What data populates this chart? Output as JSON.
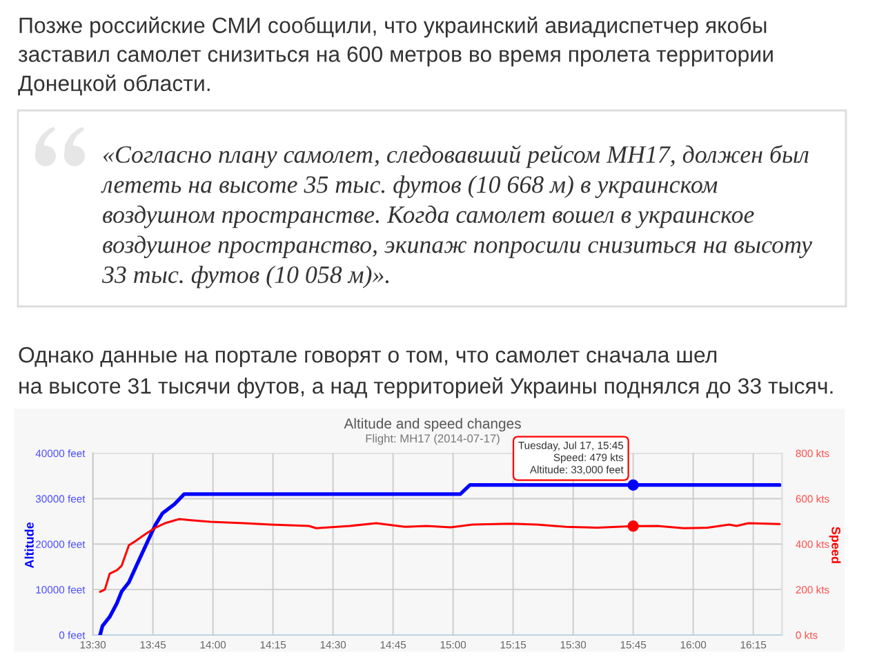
{
  "chart_data": {
    "type": "line",
    "title": "Altitude and speed changes",
    "subtitle": "Flight: MH17 (2014-07-17)",
    "ylabel": "Altitude",
    "y2label": "Speed",
    "xlim": [
      13.5,
      16.37
    ],
    "xticks": [
      {
        "value": 13.5,
        "label": "13:30"
      },
      {
        "value": 13.75,
        "label": "13:45"
      },
      {
        "value": 14,
        "label": "14:00"
      },
      {
        "value": 14.25,
        "label": "14:15"
      },
      {
        "value": 14.5,
        "label": "14:30"
      },
      {
        "value": 14.75,
        "label": "14:45"
      },
      {
        "value": 15,
        "label": "15:00"
      },
      {
        "value": 15.25,
        "label": "15:15"
      },
      {
        "value": 15.5,
        "label": "15:30"
      },
      {
        "value": 15.75,
        "label": "15:45"
      },
      {
        "value": 16,
        "label": "16:00"
      },
      {
        "value": 16.25,
        "label": "16:15"
      }
    ],
    "ylim": [
      0,
      40000
    ],
    "yticks": [
      {
        "value": 0,
        "label": "0 feet"
      },
      {
        "value": 10000,
        "label": "10000 feet"
      },
      {
        "value": 20000,
        "label": "20000 feet"
      },
      {
        "value": 30000,
        "label": "30000 feet"
      },
      {
        "value": 40000,
        "label": "40000 feet"
      }
    ],
    "y2lim": [
      0,
      800
    ],
    "y2ticks": [
      {
        "value": 0,
        "label": "0 kts"
      },
      {
        "value": 200,
        "label": "200 kts"
      },
      {
        "value": 400,
        "label": "400 kts"
      },
      {
        "value": 600,
        "label": "600 kts"
      },
      {
        "value": 800,
        "label": "800 kts"
      }
    ],
    "grid": true,
    "series": [
      {
        "color": "#0000ff",
        "x": [
          13.53,
          13.54,
          13.57,
          13.6,
          13.62,
          13.65,
          13.68,
          13.72,
          13.76,
          13.79,
          13.84,
          13.88,
          15.03,
          15.07,
          16.36
        ],
        "values": [
          0,
          2000,
          4000,
          7000,
          9600,
          11600,
          15100,
          19700,
          24200,
          26800,
          28800,
          31000,
          31000,
          33000,
          33000
        ]
      },
      {
        "axis": "y2",
        "color": "#ff0000",
        "x": [
          13.53,
          13.55,
          13.57,
          13.6,
          13.62,
          13.65,
          13.68,
          13.72,
          13.76,
          13.8,
          13.86,
          13.91,
          13.99,
          14.13,
          14.24,
          14.4,
          14.43,
          14.57,
          14.68,
          14.8,
          14.89,
          14.99,
          15.08,
          15.24,
          15.35,
          15.47,
          15.6,
          15.75,
          15.85,
          15.96,
          16.06,
          16.15,
          16.18,
          16.23,
          16.31,
          16.36
        ],
        "values": [
          190,
          200,
          270,
          285,
          305,
          395,
          415,
          445,
          472,
          492,
          510,
          505,
          498,
          492,
          486,
          480,
          470,
          480,
          492,
          476,
          480,
          474,
          486,
          490,
          486,
          476,
          472,
          479,
          480,
          470,
          472,
          486,
          480,
          492,
          490,
          488
        ]
      },
      {
        "type": "scatter",
        "marker": "circle",
        "color": "#0000ff",
        "x": [
          15.75
        ],
        "values": [
          33000
        ]
      },
      {
        "type": "scatter",
        "axis": "y2",
        "marker": "circle",
        "color": "#ff0000",
        "x": [
          15.75
        ],
        "values": [
          479
        ]
      }
    ],
    "annotations": [
      "Позже российские СМИ сообщили, что украинский авиадиспетчер якобы\nзаставил самолет снизиться на 600 метров во время пролета территории\nДонецкой области.",
      "«Согласно плану самолет, следовавший рейсом MH17, должен был\nлететь на высоте 35 тыс. футов (10 668 м) в украинском\nвоздушном пространстве. Когда самолет вошел в украинское\nвоздушное пространство, экипаж попросили снизиться на высоту\n33 тыс. футов (10 058 м)».",
      "Однако данные на портале говорят о том, что самолет сначала шел\nна высоте 31 тысячи футов, а над территорией Украины поднялся до 33 тысяч.",
      {
        "text": "Tuesday, Jul 17, 15:45\nSpeed: 479 kts\nAltitude: 33,000 feet",
        "x": 15.75,
        "y": 33000
      }
    ]
  }
}
